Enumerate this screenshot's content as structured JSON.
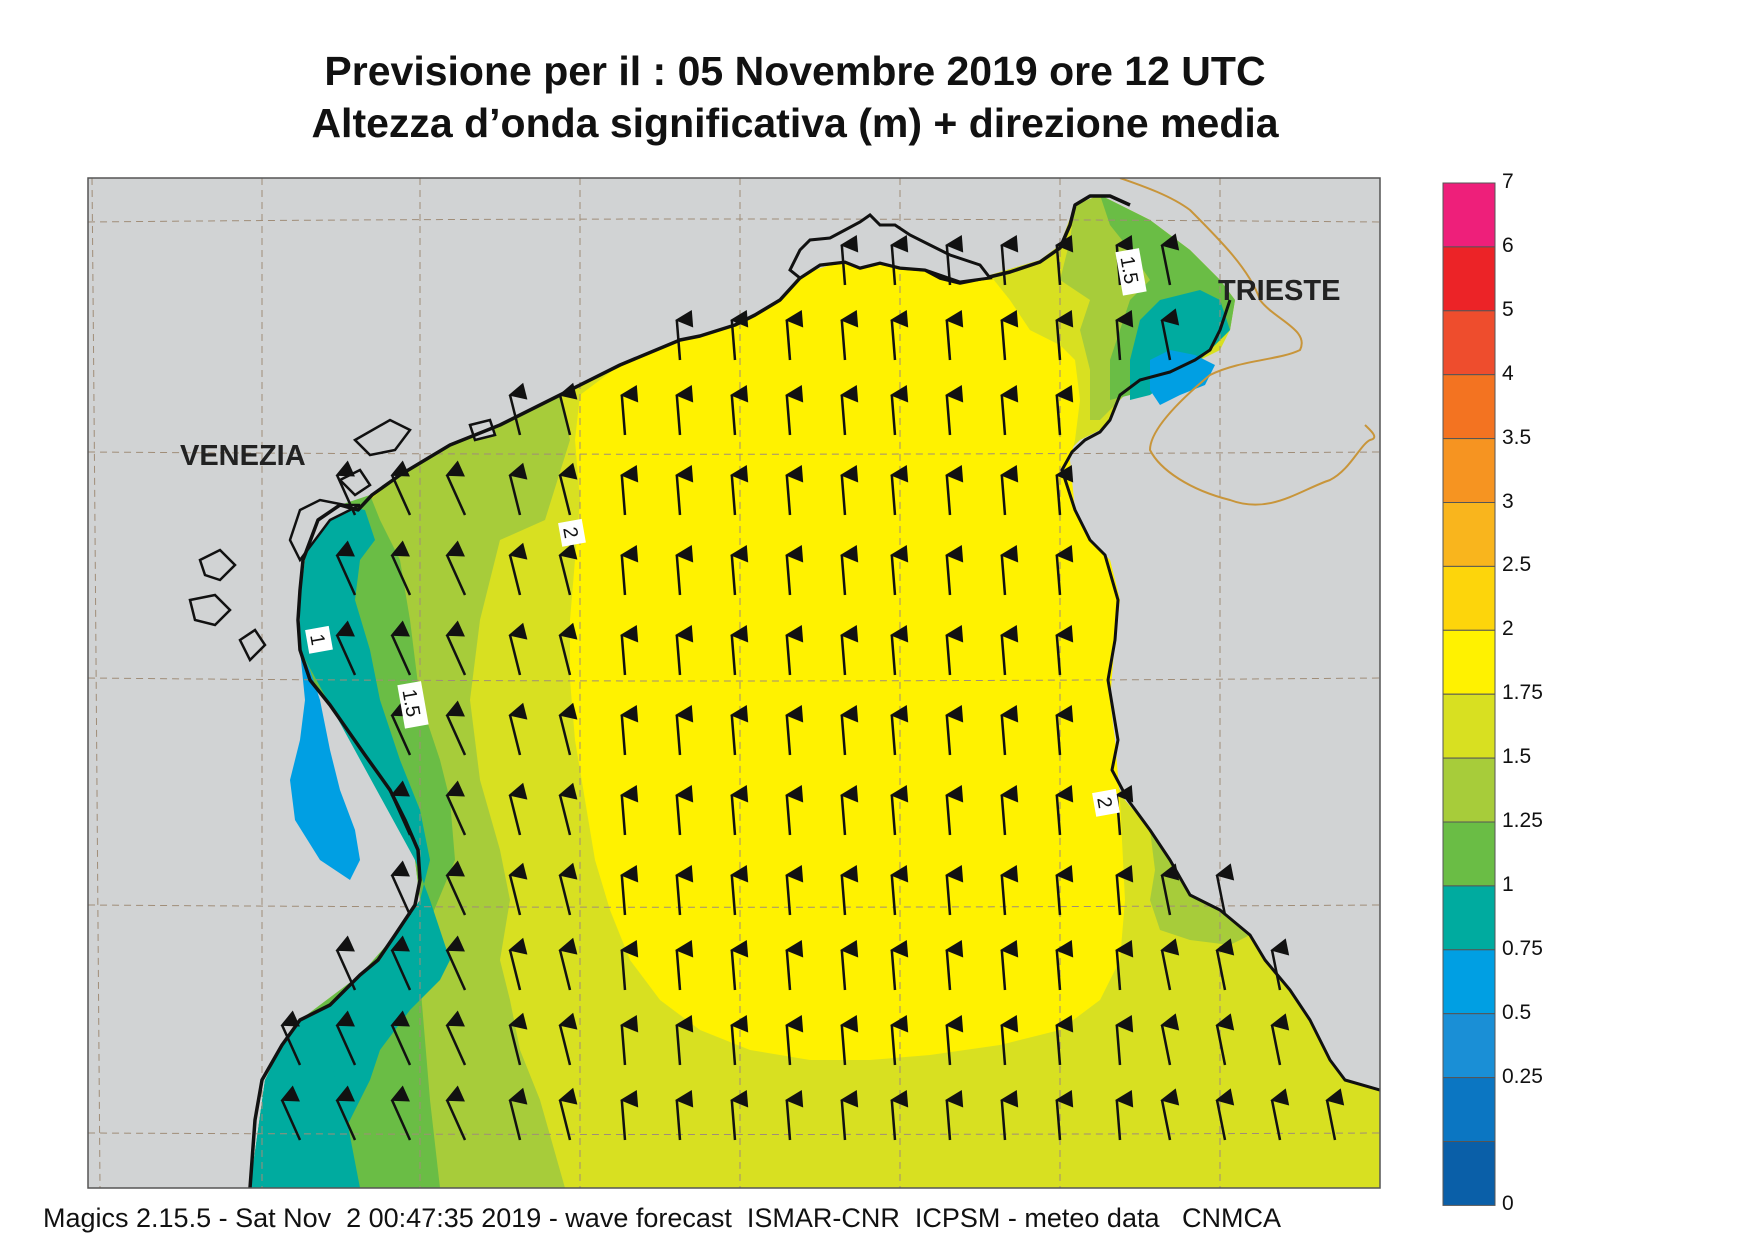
{
  "title_line1": "Previsione per il  :  05 Novembre  2019   ore 12 UTC",
  "title_line2": "Altezza d’onda significativa (m) + direzione media",
  "places": {
    "venezia": "VENEZIA",
    "trieste": "TRIESTE"
  },
  "contour_labels": {
    "c1": "1",
    "c15a": "1.5",
    "c15b": "1.5",
    "c2a": "2",
    "c2b": "2"
  },
  "footer": "Magics 2.15.5 - Sat Nov  2 00:47:35 2019 - wave forecast  ISMAR-CNR  ICPSM - meteo data   CNMCA",
  "legend": {
    "unit": "m",
    "levels": [
      "7",
      "6",
      "5",
      "4",
      "3.5",
      "3",
      "2.5",
      "2",
      "1.75",
      "1.5",
      "1.25",
      "1",
      "0.75",
      "0.5",
      "0.25",
      "0"
    ],
    "colors": [
      "#ee1f7a",
      "#ec2327",
      "#ee4d2d",
      "#f37321",
      "#f69421",
      "#f9b51d",
      "#fdd50b",
      "#fff200",
      "#d8e021",
      "#a7cc3a",
      "#6abd45",
      "#00ab9f",
      "#009fe3",
      "#1a8fd6",
      "#0b76c2",
      "#0a5fa8"
    ]
  },
  "colors": {
    "land": "#d1d3d4",
    "coast": "#111111",
    "border": "#c8953a"
  },
  "wave_direction": "north (arrows pointing up / slightly north-west near the western coast)"
}
